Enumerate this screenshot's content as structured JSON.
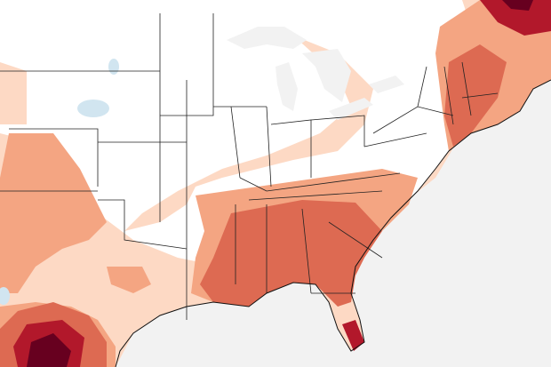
{
  "map": {
    "region": "eastern-and-central-united-states",
    "colors": {
      "land_neutral": "#ffffff",
      "water": "#f2f2f2",
      "anomaly_weak_positive": "#fdd9c4",
      "anomaly_moderate_positive": "#f4a582",
      "anomaly_strong_positive": "#dd6a52",
      "anomaly_very_strong_positive": "#b2182b",
      "anomaly_extreme_positive": "#67001f",
      "anomaly_weak_negative": "#d1e5f0"
    }
  }
}
